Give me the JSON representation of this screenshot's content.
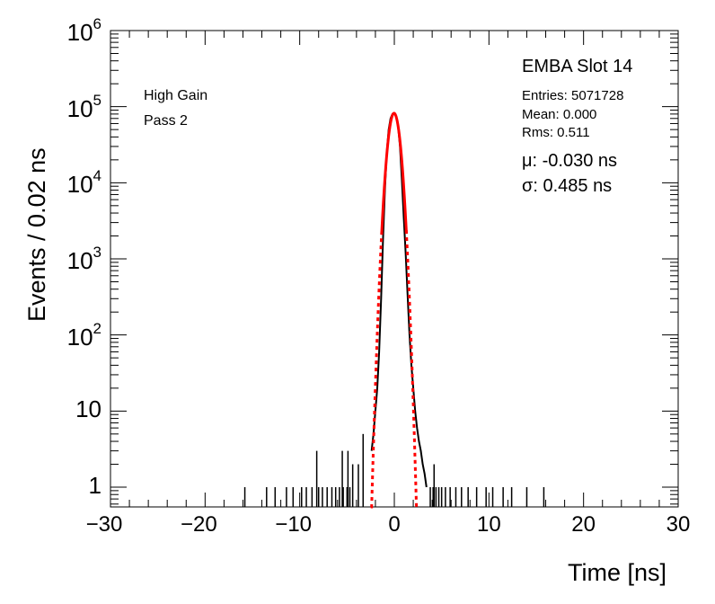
{
  "chart_data": {
    "type": "line",
    "title": "EMBA Slot 14",
    "xlabel": "Time [ns]",
    "ylabel": "Events / 0.02 ns",
    "xlim": [
      -30,
      30
    ],
    "ylim": [
      0.55,
      1000000
    ],
    "yscale": "log",
    "grid": false,
    "x_ticks": [
      -30,
      -20,
      -10,
      0,
      10,
      20,
      30
    ],
    "x_tick_labels": [
      "−30",
      "−20",
      "−10",
      "0",
      "10",
      "20",
      "30"
    ],
    "y_ticks": [
      1,
      10,
      100,
      1000,
      10000,
      100000,
      1000000
    ],
    "y_tick_labels": [
      {
        "base": "1",
        "exp": ""
      },
      {
        "base": "10",
        "exp": ""
      },
      {
        "base": "10",
        "exp": "2"
      },
      {
        "base": "10",
        "exp": "3"
      },
      {
        "base": "10",
        "exp": "4"
      },
      {
        "base": "10",
        "exp": "5"
      },
      {
        "base": "10",
        "exp": "6"
      }
    ],
    "annotations": {
      "gain": "High Gain",
      "pass": "Pass 2",
      "slot": "EMBA Slot 14",
      "entries": "Entries: 5071728",
      "mean": "Mean: 0.000",
      "rms": "Rms: 0.511",
      "mu": "μ: -0.030 ns",
      "sigma": "σ: 0.485 ns"
    },
    "series": [
      {
        "name": "histogram",
        "color": "#000000",
        "x": [
          -2.4,
          -2.2,
          -2.0,
          -1.8,
          -1.6,
          -1.4,
          -1.2,
          -1.0,
          -0.8,
          -0.6,
          -0.4,
          -0.2,
          0.0,
          0.2,
          0.4,
          0.6,
          0.8,
          1.0,
          1.2,
          1.4,
          1.6,
          1.8,
          2.0,
          2.2,
          2.4,
          2.6,
          2.8,
          3.0,
          3.2,
          3.4
        ],
        "y": [
          3,
          5,
          10,
          20,
          60,
          300,
          1800,
          8000,
          25000,
          50000,
          70000,
          80000,
          82000,
          75000,
          55000,
          30000,
          11000,
          3500,
          1200,
          350,
          100,
          40,
          20,
          10,
          6,
          4,
          3,
          2,
          1.5,
          1
        ]
      },
      {
        "name": "fit",
        "color": "#ff0000",
        "mu": -0.03,
        "sigma": 0.485,
        "amplitude": 82000,
        "x": [
          -2.4,
          -2.0,
          -1.6,
          -1.2,
          -0.8,
          -0.4,
          -0.03,
          0.4,
          0.8,
          1.2,
          1.6,
          2.0,
          2.4
        ],
        "y": [
          0.59,
          17,
          380,
          4400,
          25600,
          74000,
          82000,
          54300,
          21100,
          3120,
          266,
          14.3,
          0.47
        ]
      }
    ],
    "isolated_bins": [
      -15.8,
      -13.5,
      -12.6,
      -11.4,
      -10.7,
      -9.8,
      -9.3,
      -8.7,
      -8.0,
      -7.6,
      -7.1,
      -6.6,
      -6.2,
      -5.8,
      -5.4,
      -5.0,
      -4.7,
      3.8,
      4.1,
      4.4,
      4.7,
      5.0,
      5.4,
      5.9,
      6.5,
      7.1,
      7.8,
      8.7,
      9.7,
      10.4,
      11.5,
      12.4,
      14.0,
      15.8
    ],
    "tail_bins": [
      {
        "x": -8.2,
        "y": 3
      },
      {
        "x": -5.5,
        "y": 3
      },
      {
        "x": -4.9,
        "y": 3
      },
      {
        "x": -4.4,
        "y": 2
      },
      {
        "x": -3.8,
        "y": 2
      },
      {
        "x": -3.3,
        "y": 5
      },
      {
        "x": 4.2,
        "y": 2
      }
    ]
  }
}
